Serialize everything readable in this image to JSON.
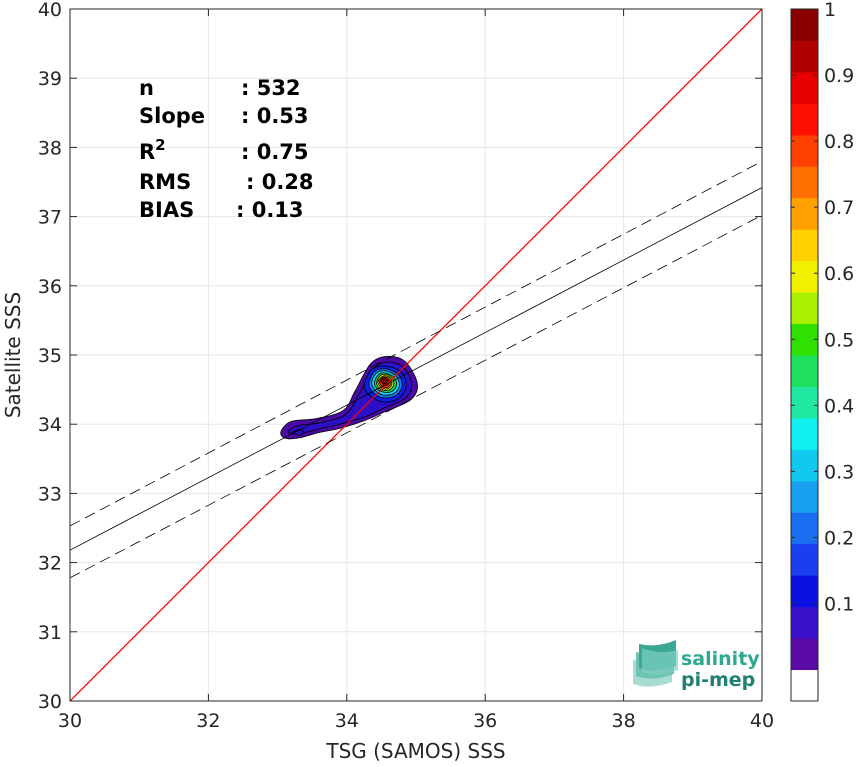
{
  "chart_data": {
    "type": "scatter",
    "xlabel": "TSG (SAMOS) SSS",
    "ylabel": "Satellite SSS",
    "xlim": [
      30,
      40
    ],
    "ylim": [
      30,
      40
    ],
    "x_ticks": [
      "30",
      "32",
      "34",
      "36",
      "38",
      "40"
    ],
    "y_ticks": [
      "30",
      "31",
      "32",
      "33",
      "34",
      "35",
      "36",
      "37",
      "38",
      "39",
      "40"
    ],
    "grid": true,
    "stats": [
      {
        "label": "n",
        "value": ": 532"
      },
      {
        "label": "Slope",
        "value": ": 0.53"
      },
      {
        "label": "R",
        "sup": "2",
        "value": ": 0.75"
      },
      {
        "label": "RMS",
        "value": ": 0.28"
      },
      {
        "label": "BIAS",
        "value": ": 0.13"
      }
    ],
    "identity_line": {
      "color": "#ff0000",
      "from": [
        30,
        30
      ],
      "to": [
        40,
        40
      ]
    },
    "fit_line": {
      "from": [
        30,
        32.18
      ],
      "to": [
        40,
        37.42
      ],
      "color": "#000000"
    },
    "fit_bounds": [
      {
        "from": [
          30,
          32.53
        ],
        "to": [
          40,
          37.8
        ]
      },
      {
        "from": [
          30,
          31.78
        ],
        "to": [
          40,
          37.02
        ]
      }
    ],
    "density_contours": [
      {
        "level": 0.05,
        "color": "#4b0aa5",
        "path": [
          [
            33.05,
            33.9
          ],
          [
            33.2,
            34.04
          ],
          [
            33.55,
            34.08
          ],
          [
            33.95,
            34.2
          ],
          [
            34.12,
            34.48
          ],
          [
            34.35,
            34.88
          ],
          [
            34.6,
            34.98
          ],
          [
            34.85,
            34.9
          ],
          [
            35.02,
            34.58
          ],
          [
            34.92,
            34.35
          ],
          [
            34.55,
            34.18
          ],
          [
            34.25,
            34.05
          ],
          [
            33.9,
            33.94
          ],
          [
            33.6,
            33.88
          ],
          [
            33.3,
            33.8
          ],
          [
            33.1,
            33.8
          ]
        ]
      },
      {
        "level": 0.1,
        "color": "#2c10c8",
        "path": [
          [
            33.15,
            33.89
          ],
          [
            33.3,
            33.98
          ],
          [
            33.6,
            34.02
          ],
          [
            33.98,
            34.14
          ],
          [
            34.18,
            34.44
          ],
          [
            34.38,
            34.8
          ],
          [
            34.6,
            34.9
          ],
          [
            34.82,
            34.82
          ],
          [
            34.94,
            34.58
          ],
          [
            34.85,
            34.38
          ],
          [
            34.55,
            34.24
          ],
          [
            34.25,
            34.1
          ],
          [
            33.9,
            34.0
          ],
          [
            33.6,
            33.93
          ],
          [
            33.3,
            33.86
          ]
        ]
      },
      {
        "level": 0.2,
        "color": "#0a1fe6",
        "path": [
          [
            34.25,
            34.55
          ],
          [
            34.35,
            34.78
          ],
          [
            34.55,
            34.84
          ],
          [
            34.78,
            34.76
          ],
          [
            34.86,
            34.56
          ],
          [
            34.76,
            34.38
          ],
          [
            34.55,
            34.32
          ],
          [
            34.35,
            34.4
          ]
        ]
      },
      {
        "level": 0.3,
        "color": "#1a78f0",
        "path": [
          [
            34.32,
            34.58
          ],
          [
            34.4,
            34.76
          ],
          [
            34.56,
            34.8
          ],
          [
            34.74,
            34.72
          ],
          [
            34.8,
            34.56
          ],
          [
            34.72,
            34.42
          ],
          [
            34.55,
            34.38
          ],
          [
            34.4,
            34.44
          ]
        ]
      },
      {
        "level": 0.4,
        "color": "#10d8f0",
        "path": [
          [
            34.36,
            34.6
          ],
          [
            34.43,
            34.74
          ],
          [
            34.56,
            34.77
          ],
          [
            34.71,
            34.7
          ],
          [
            34.76,
            34.56
          ],
          [
            34.69,
            34.45
          ],
          [
            34.55,
            34.42
          ],
          [
            34.43,
            34.47
          ]
        ]
      },
      {
        "level": 0.5,
        "color": "#20d060",
        "path": [
          [
            34.4,
            34.6
          ],
          [
            34.46,
            34.72
          ],
          [
            34.56,
            34.74
          ],
          [
            34.68,
            34.68
          ],
          [
            34.72,
            34.57
          ],
          [
            34.66,
            34.48
          ],
          [
            34.55,
            34.46
          ],
          [
            34.45,
            34.5
          ]
        ]
      },
      {
        "level": 0.6,
        "color": "#c8f000",
        "path": [
          [
            34.43,
            34.6
          ],
          [
            34.48,
            34.7
          ],
          [
            34.56,
            34.72
          ],
          [
            34.65,
            34.67
          ],
          [
            34.68,
            34.58
          ],
          [
            34.63,
            34.5
          ],
          [
            34.55,
            34.49
          ],
          [
            34.47,
            34.52
          ]
        ]
      },
      {
        "level": 0.7,
        "color": "#ffb000",
        "path": [
          [
            34.45,
            34.61
          ],
          [
            34.5,
            34.68
          ],
          [
            34.56,
            34.7
          ],
          [
            34.63,
            34.66
          ],
          [
            34.65,
            34.58
          ],
          [
            34.61,
            34.52
          ],
          [
            34.55,
            34.51
          ],
          [
            34.49,
            34.54
          ]
        ]
      },
      {
        "level": 0.8,
        "color": "#ff5000",
        "path": [
          [
            34.47,
            34.61
          ],
          [
            34.51,
            34.67
          ],
          [
            34.56,
            34.68
          ],
          [
            34.61,
            34.65
          ],
          [
            34.63,
            34.59
          ],
          [
            34.6,
            34.54
          ],
          [
            34.55,
            34.53
          ],
          [
            34.5,
            34.56
          ]
        ]
      },
      {
        "level": 0.9,
        "color": "#e80000",
        "path": [
          [
            34.49,
            34.62
          ],
          [
            34.52,
            34.66
          ],
          [
            34.56,
            34.67
          ],
          [
            34.6,
            34.64
          ],
          [
            34.61,
            34.6
          ],
          [
            34.58,
            34.56
          ],
          [
            34.55,
            34.55
          ],
          [
            34.52,
            34.58
          ]
        ]
      },
      {
        "level": 1.0,
        "color": "#9a0000",
        "path": [
          [
            34.52,
            34.62
          ],
          [
            34.55,
            34.65
          ],
          [
            34.58,
            34.63
          ],
          [
            34.57,
            34.59
          ],
          [
            34.54,
            34.59
          ]
        ]
      },
      {
        "level": 0.1,
        "color": "#2c10c8",
        "path": [
          [
            33.22,
            33.88
          ],
          [
            33.3,
            33.92
          ],
          [
            33.38,
            33.89
          ],
          [
            33.32,
            33.84
          ]
        ]
      }
    ],
    "colorbar": {
      "tick_labels": [
        "0.1",
        "0.2",
        "0.3",
        "0.4",
        "0.5",
        "0.6",
        "0.7",
        "0.8",
        "0.9",
        "1"
      ],
      "tick_values": [
        0.1,
        0.2,
        0.3,
        0.4,
        0.5,
        0.6,
        0.7,
        0.8,
        0.9,
        1.0
      ],
      "range": [
        0,
        1
      ],
      "colors": [
        "#ffffff",
        "#5a0aa5",
        "#3a10c8",
        "#0a10e0",
        "#1a3ef0",
        "#1a6ef0",
        "#1aa0f0",
        "#10c8f0",
        "#10f0f0",
        "#20e8a0",
        "#20e060",
        "#30e000",
        "#a8f000",
        "#f0f000",
        "#ffd000",
        "#ffa000",
        "#ff7000",
        "#ff4000",
        "#ff1000",
        "#e80000",
        "#b00000",
        "#8a0000"
      ]
    },
    "logo": {
      "line1": "salinity",
      "line2": "pi-mep"
    }
  }
}
